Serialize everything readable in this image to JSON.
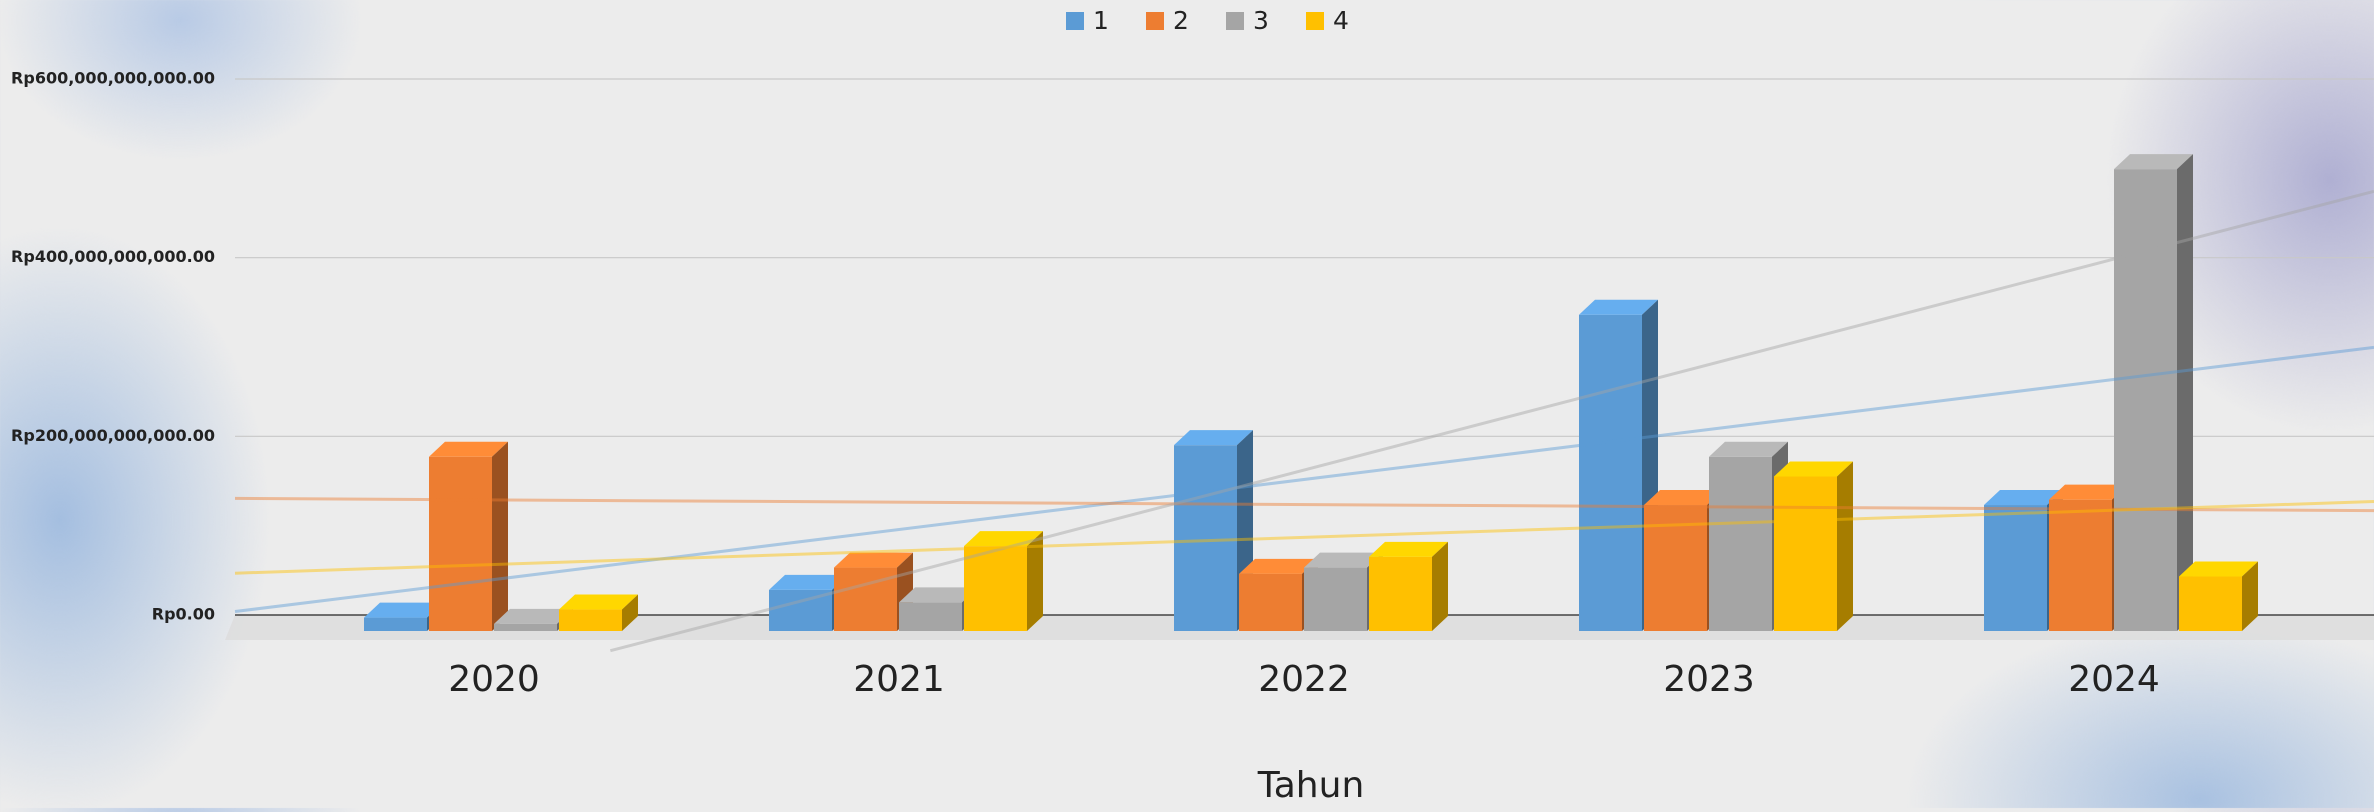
{
  "chart_data": {
    "type": "bar3d",
    "x_label": "Tahun",
    "categories": [
      "2020",
      "2021",
      "2022",
      "2023",
      "2024"
    ],
    "series": [
      {
        "name": "1",
        "color": "#5b9bd5",
        "values": [
          15000000000,
          46000000000,
          208000000000,
          354000000000,
          141000000000
        ]
      },
      {
        "name": "2",
        "color": "#ed7d31",
        "values": [
          195000000000,
          71000000000,
          64000000000,
          141000000000,
          147000000000
        ]
      },
      {
        "name": "3",
        "color": "#a5a5a5",
        "values": [
          8000000000,
          32000000000,
          71000000000,
          195000000000,
          517000000000
        ]
      },
      {
        "name": "4",
        "color": "#ffc000",
        "values": [
          24000000000,
          95000000000,
          83000000000,
          173000000000,
          61000000000
        ]
      }
    ],
    "ylim": [
      0,
      600000000000
    ],
    "yticks": [
      {
        "value": 0,
        "label": "Rp0.00"
      },
      {
        "value": 200000000000,
        "label": "Rp200,000,000,000.00"
      },
      {
        "value": 400000000000,
        "label": "Rp400,000,000,000.00"
      },
      {
        "value": 600000000000,
        "label": "Rp600,000,000,000.00"
      }
    ],
    "grid": true,
    "trendline": "linear",
    "legend": "top"
  }
}
